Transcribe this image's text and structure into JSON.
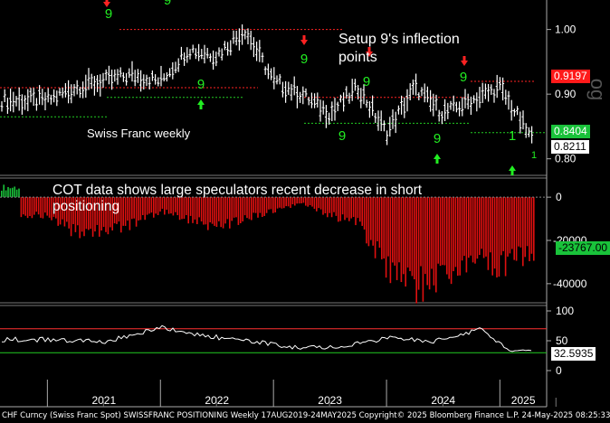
{
  "chart_data": [
    {
      "type": "line",
      "title": "Swiss Franc weekly",
      "panel": "price",
      "ylim": [
        0.78,
        1.04
      ],
      "y_ticks": [
        "1.00",
        "0.90",
        "0.80"
      ],
      "series": [
        {
          "x": [
            "2021-01",
            "2021-04",
            "2021-07",
            "2021-10",
            "2022-01",
            "2022-04",
            "2022-07",
            "2022-10",
            "2023-01",
            "2023-04",
            "2023-07",
            "2023-10",
            "2024-01",
            "2024-04",
            "2024-07",
            "2024-10",
            "2025-01",
            "2025-04",
            "2025-05"
          ],
          "values": [
            0.89,
            0.91,
            0.92,
            0.93,
            0.92,
            0.97,
            0.96,
            1.0,
            0.92,
            0.9,
            0.87,
            0.91,
            0.84,
            0.91,
            0.87,
            0.89,
            0.91,
            0.84,
            0.82
          ]
        }
      ],
      "price_tags": [
        {
          "value": "0.9197",
          "color": "#ff1a1a"
        },
        {
          "value": "0.8404",
          "color": "#19c23a"
        },
        {
          "value": "0.8211",
          "color": "#ffffff"
        }
      ],
      "annotations": [
        "Setup 9's inflection points",
        "Swiss Franc weekly"
      ]
    },
    {
      "type": "bar",
      "title": "COT data shows large speculators recent decrease in short positioning",
      "panel": "cot",
      "ylim": [
        -48000,
        8000
      ],
      "y_ticks": [
        "0",
        "-20000",
        "-40000"
      ],
      "last_value": "-23767.00",
      "x": [
        "2021-01",
        "2021-04",
        "2021-07",
        "2021-10",
        "2022-01",
        "2022-04",
        "2022-07",
        "2022-10",
        "2023-01",
        "2023-04",
        "2023-07",
        "2023-10",
        "2024-01",
        "2024-04",
        "2024-07",
        "2024-10",
        "2025-01",
        "2025-04",
        "2025-05"
      ],
      "values": [
        -8000,
        -16000,
        -15000,
        -12000,
        -6000,
        -10000,
        -14000,
        -10000,
        -6000,
        -3000,
        -8000,
        -12000,
        -32000,
        -40000,
        -36000,
        -28000,
        -30000,
        -26000,
        -23767
      ]
    },
    {
      "type": "line",
      "panel": "oscillator",
      "ylim": [
        0,
        100
      ],
      "y_ticks": [
        "100",
        "50",
        "0"
      ],
      "upper_band": 70,
      "lower_band": 30,
      "last_value": "32.5935",
      "x": [
        "2021-01",
        "2021-07",
        "2022-01",
        "2022-05",
        "2022-10",
        "2023-03",
        "2023-08",
        "2024-01",
        "2024-06",
        "2024-11",
        "2025-02",
        "2025-05"
      ],
      "values": [
        52,
        48,
        72,
        60,
        50,
        40,
        38,
        55,
        48,
        70,
        32,
        33
      ]
    }
  ],
  "x_axis": {
    "labels": [
      "2021",
      "2022",
      "2023",
      "2024",
      "2025"
    ]
  },
  "sequence_labels": [
    "9",
    "9",
    "9",
    "9",
    "9",
    "9",
    "9",
    "9",
    "1"
  ],
  "footer": "CHF Curncy (Swiss Franc Spot) SWISSFRANC POSITIONING  Weekly 17AUG2019-24MAY2025 Copyright© 2025 Bloomberg Finance L.P.  24-May-2025 08:25:33",
  "side_tag": "og",
  "colors": {
    "bars": "#e01010",
    "bars_pos": "#19c23a",
    "setup": "#22ee22",
    "signal_down": "#ff2222",
    "signal_up": "#22ee22",
    "resistance": "#ff2222",
    "support": "#22cc22",
    "grid": "#888888"
  }
}
